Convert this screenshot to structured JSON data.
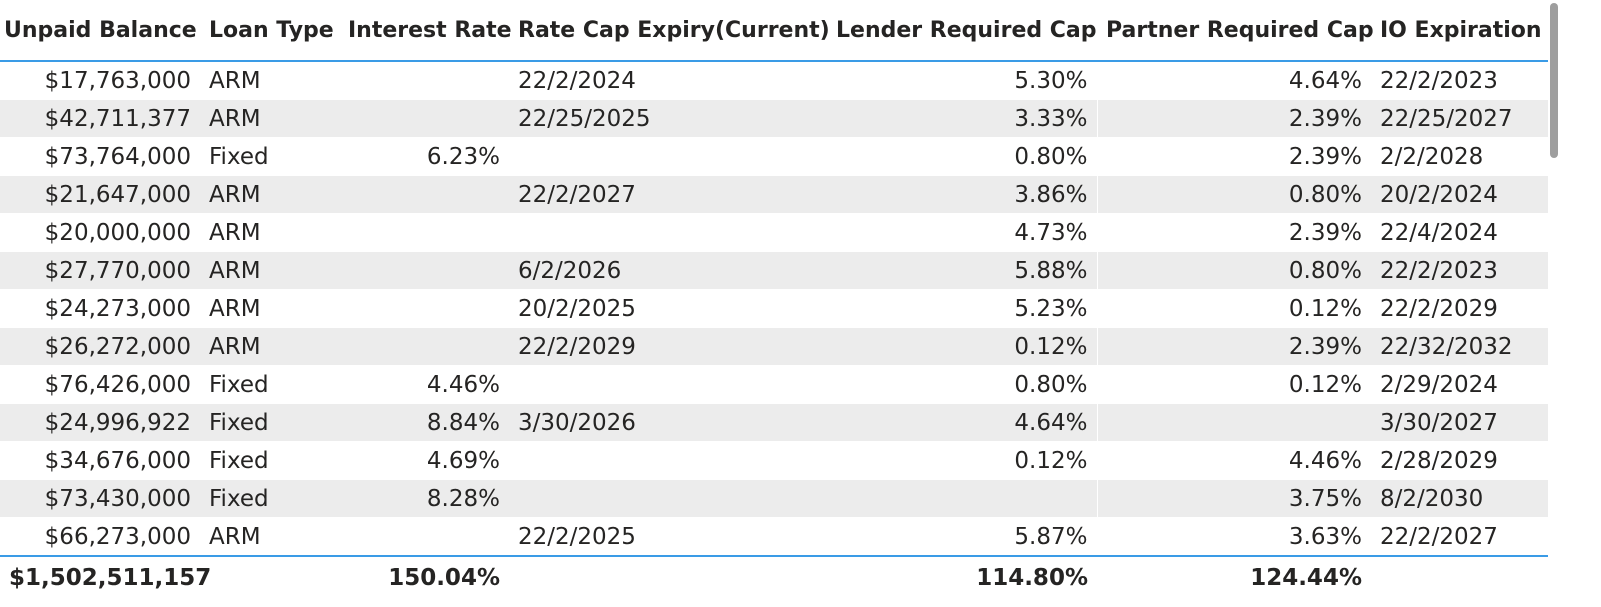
{
  "table": {
    "columns": [
      "Unpaid Balance",
      "Loan Type",
      "Interest Rate",
      "Rate Cap Expiry(Current)",
      "Lender Required Cap",
      "Partner Required Cap",
      "IO Expiration"
    ],
    "rows": [
      [
        "$17,763,000",
        "ARM",
        "",
        "22/2/2024",
        "5.30%",
        "4.64%",
        "22/2/2023"
      ],
      [
        "$42,711,377",
        "ARM",
        "",
        "22/25/2025",
        "3.33%",
        "2.39%",
        "22/25/2027"
      ],
      [
        "$73,764,000",
        "Fixed",
        "6.23%",
        "",
        "0.80%",
        "2.39%",
        "2/2/2028"
      ],
      [
        "$21,647,000",
        "ARM",
        "",
        "22/2/2027",
        "3.86%",
        "0.80%",
        "20/2/2024"
      ],
      [
        "$20,000,000",
        "ARM",
        "",
        "",
        "4.73%",
        "2.39%",
        "22/4/2024"
      ],
      [
        "$27,770,000",
        "ARM",
        "",
        "6/2/2026",
        "5.88%",
        "0.80%",
        "22/2/2023"
      ],
      [
        "$24,273,000",
        "ARM",
        "",
        "20/2/2025",
        "5.23%",
        "0.12%",
        "22/2/2029"
      ],
      [
        "$26,272,000",
        "ARM",
        "",
        "22/2/2029",
        "0.12%",
        "2.39%",
        "22/32/2032"
      ],
      [
        "$76,426,000",
        "Fixed",
        "4.46%",
        "",
        "0.80%",
        "0.12%",
        "2/29/2024"
      ],
      [
        "$24,996,922",
        "Fixed",
        "8.84%",
        "3/30/2026",
        "4.64%",
        "",
        "3/30/2027"
      ],
      [
        "$34,676,000",
        "Fixed",
        "4.69%",
        "",
        "0.12%",
        "4.46%",
        "2/28/2029"
      ],
      [
        "$73,430,000",
        "Fixed",
        "8.28%",
        "",
        "",
        "3.75%",
        "8/2/2030"
      ],
      [
        "$66,273,000",
        "ARM",
        "",
        "22/2/2025",
        "5.87%",
        "3.63%",
        "22/2/2027"
      ]
    ],
    "totals": [
      "$1,502,511,157",
      "",
      "150.04%",
      "",
      "114.80%",
      "124.44%",
      ""
    ]
  },
  "colors": {
    "header_rule": "#3a9be6",
    "band": "#ececec",
    "scrollbar_thumb": "#9e9e9e"
  }
}
